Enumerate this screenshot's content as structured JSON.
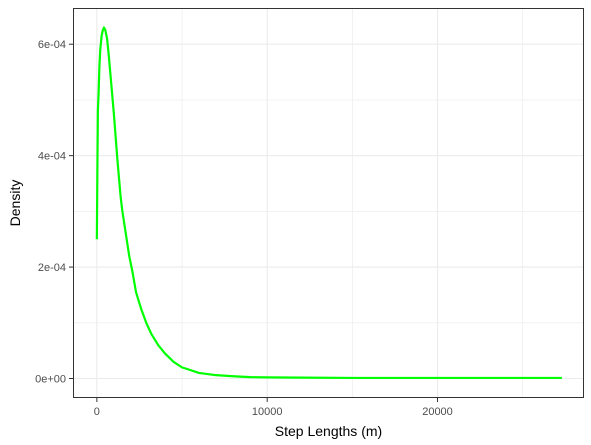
{
  "chart_data": {
    "type": "line",
    "title": "",
    "xlabel": "Step Lengths (m)",
    "ylabel": "Density",
    "xlim": [
      -1400,
      28600
    ],
    "ylim": [
      -3.5e-05,
      0.000665
    ],
    "x_ticks": [
      0,
      10000,
      20000
    ],
    "x_tick_labels": [
      "0",
      "10000",
      "20000"
    ],
    "y_ticks": [
      0,
      0.0002,
      0.0004,
      0.0006
    ],
    "y_tick_labels": [
      "0e+00",
      "2e-04",
      "4e-04",
      "6e-04"
    ],
    "grid": true,
    "legend": "none",
    "colors": {
      "line": "#00ff00",
      "grid": "#ebebeb",
      "panel_border": "#333333",
      "tick_text": "#4d4d4d"
    },
    "series": [
      {
        "values": [
          [
            0,
            0.00025
          ],
          [
            30,
            0.00037
          ],
          [
            60,
            0.00048
          ],
          [
            100,
            0.00051
          ],
          [
            150,
            0.00056
          ],
          [
            200,
            0.00059
          ],
          [
            280,
            0.000615
          ],
          [
            350,
            0.000625
          ],
          [
            420,
            0.00063
          ],
          [
            500,
            0.000625
          ],
          [
            600,
            0.00061
          ],
          [
            700,
            0.00058
          ],
          [
            800,
            0.000545
          ],
          [
            900,
            0.00051
          ],
          [
            1000,
            0.000475
          ],
          [
            1100,
            0.000435
          ],
          [
            1200,
            0.000395
          ],
          [
            1300,
            0.00036
          ],
          [
            1400,
            0.000325
          ],
          [
            1500,
            0.0003
          ],
          [
            1700,
            0.00026
          ],
          [
            1900,
            0.00022
          ],
          [
            2100,
            0.00019
          ],
          [
            2300,
            0.000155
          ],
          [
            2600,
            0.000125
          ],
          [
            2900,
            0.0001
          ],
          [
            3200,
            8e-05
          ],
          [
            3600,
            6e-05
          ],
          [
            4000,
            4.5e-05
          ],
          [
            4500,
            3e-05
          ],
          [
            5000,
            2e-05
          ],
          [
            5500,
            1.5e-05
          ],
          [
            6000,
            1e-05
          ],
          [
            7000,
            6e-06
          ],
          [
            8000,
            4e-06
          ],
          [
            9000,
            2.5e-06
          ],
          [
            10000,
            2e-06
          ],
          [
            12000,
            1.5e-06
          ],
          [
            15000,
            1e-06
          ],
          [
            20000,
            1e-06
          ],
          [
            25000,
            1e-06
          ],
          [
            27300,
            1e-06
          ]
        ]
      }
    ]
  }
}
